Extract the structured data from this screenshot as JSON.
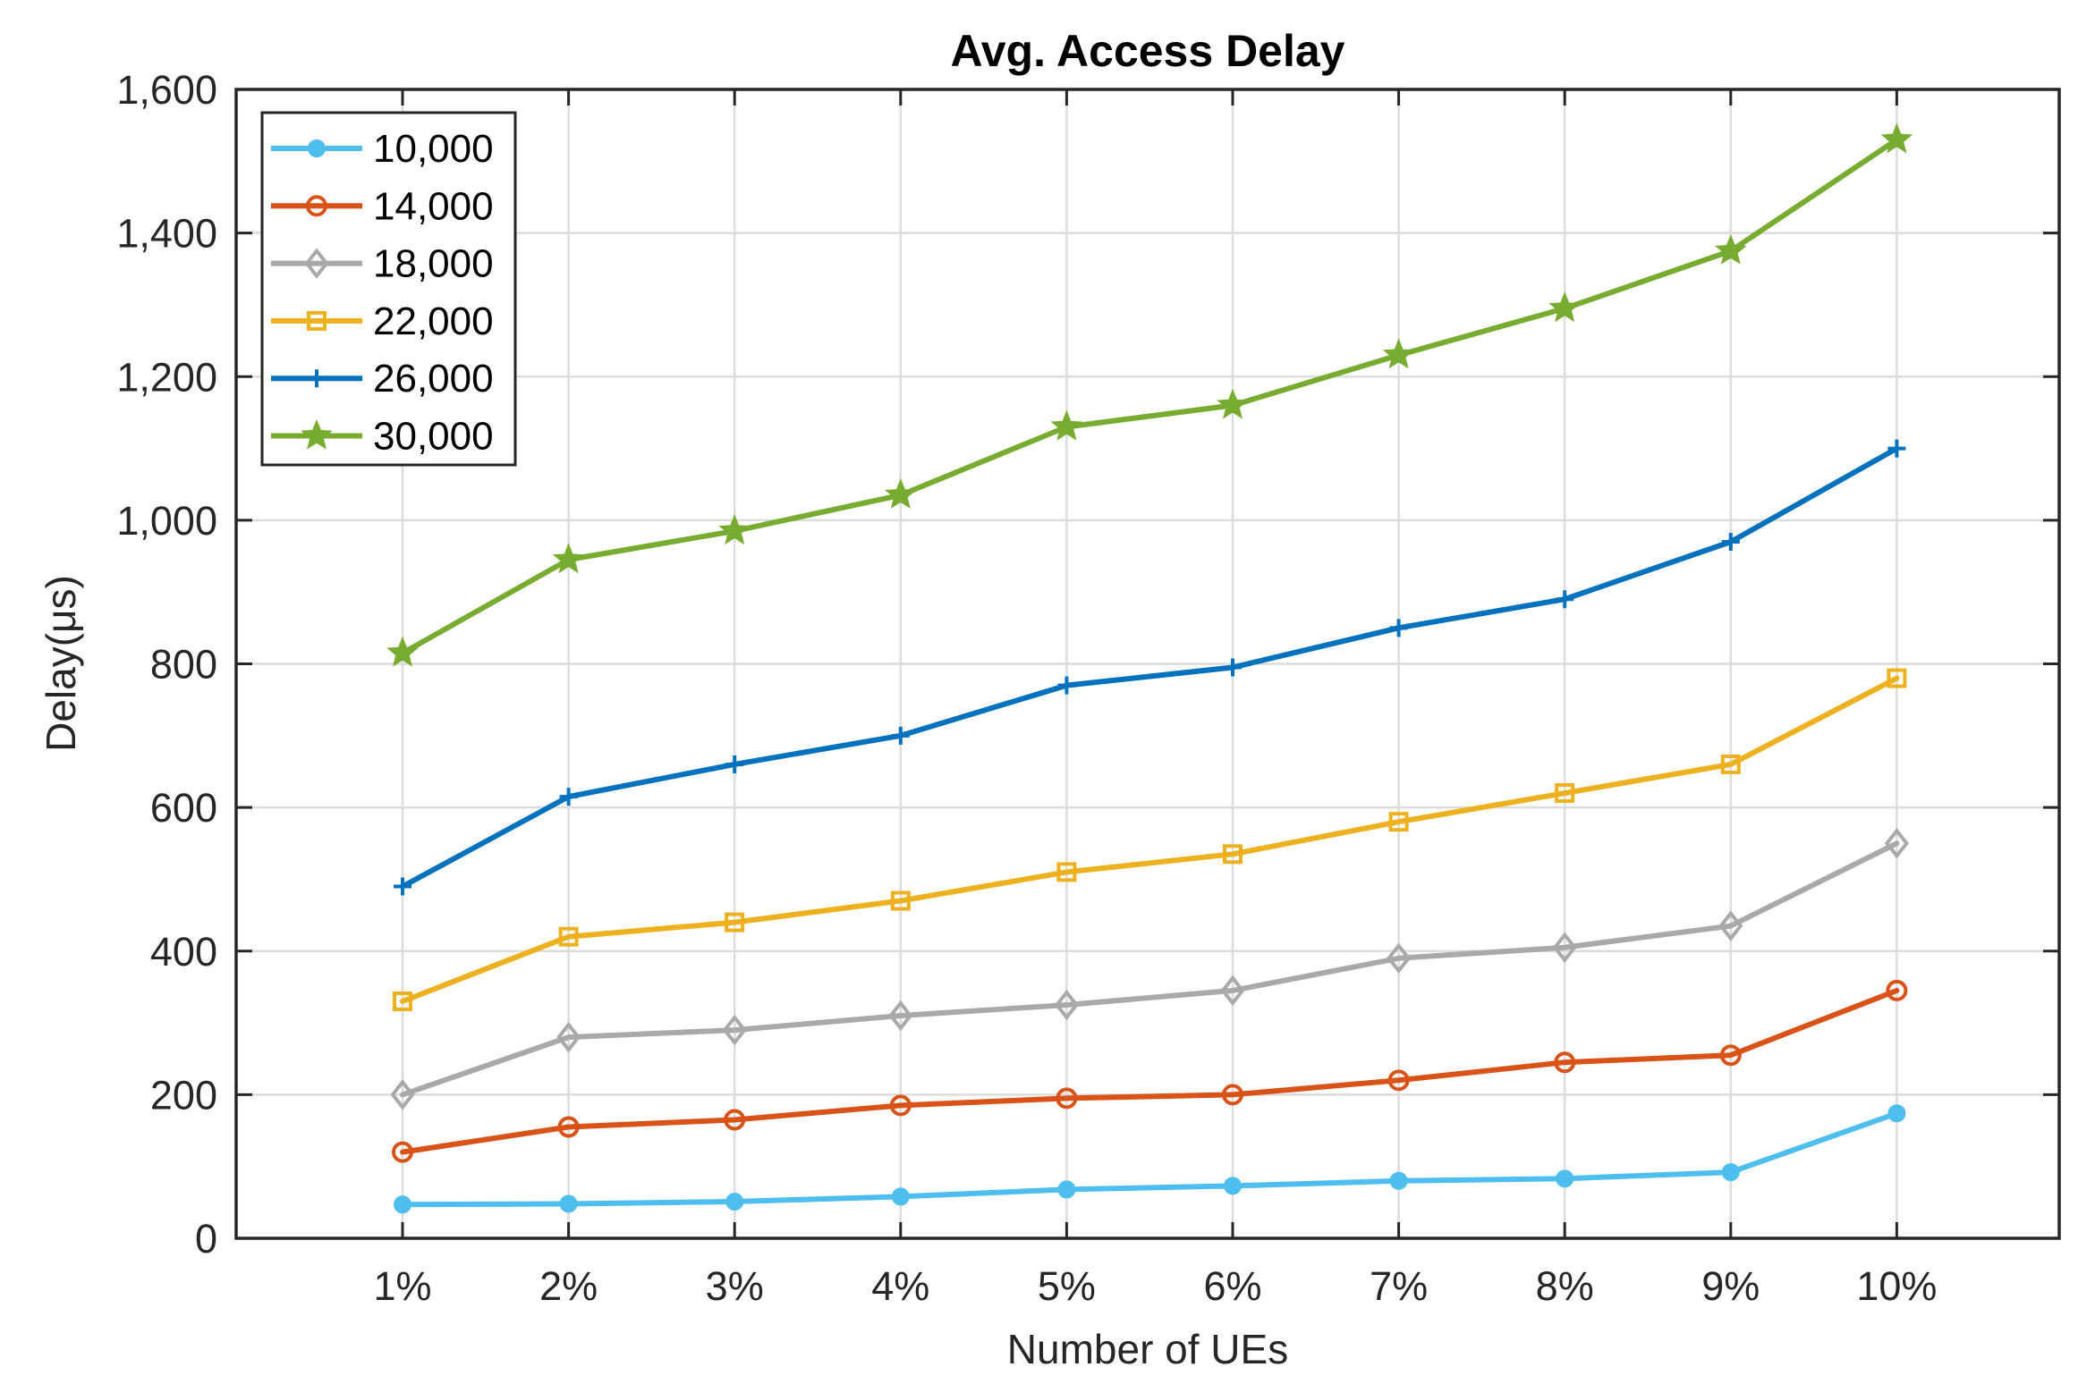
{
  "chart_data": {
    "type": "line",
    "title": "Avg. Access Delay",
    "xlabel": "Number of UEs",
    "ylabel": "Delay(μs)",
    "categories": [
      "1%",
      "2%",
      "3%",
      "4%",
      "5%",
      "6%",
      "7%",
      "8%",
      "9%",
      "10%"
    ],
    "ylim": [
      0,
      1600
    ],
    "yticks": [
      0,
      200,
      400,
      600,
      800,
      1000,
      1200,
      1400,
      1600
    ],
    "ytick_labels": [
      "0",
      "200",
      "400",
      "600",
      "800",
      "1,000",
      "1,200",
      "1,400",
      "1,600"
    ],
    "grid": true,
    "legend_position": "top-left",
    "series": [
      {
        "name": "10,000",
        "color": "#4DBEEE",
        "marker": "dot",
        "values": [
          47,
          48,
          51,
          58,
          68,
          73,
          80,
          83,
          92,
          174
        ]
      },
      {
        "name": "14,000",
        "color": "#D95319",
        "marker": "circle",
        "values": [
          120,
          155,
          165,
          185,
          195,
          200,
          220,
          245,
          255,
          345
        ]
      },
      {
        "name": "18,000",
        "color": "#A9A9A9",
        "marker": "diamond",
        "values": [
          200,
          280,
          290,
          310,
          325,
          345,
          390,
          405,
          435,
          550
        ]
      },
      {
        "name": "22,000",
        "color": "#EDB120",
        "marker": "square",
        "values": [
          330,
          420,
          440,
          470,
          510,
          535,
          580,
          620,
          660,
          780
        ]
      },
      {
        "name": "26,000",
        "color": "#0072BD",
        "marker": "plus",
        "values": [
          490,
          615,
          660,
          700,
          770,
          795,
          850,
          890,
          970,
          1100
        ]
      },
      {
        "name": "30,000",
        "color": "#77AC30",
        "marker": "star",
        "values": [
          815,
          945,
          985,
          1035,
          1130,
          1160,
          1230,
          1295,
          1375,
          1530
        ]
      }
    ]
  }
}
